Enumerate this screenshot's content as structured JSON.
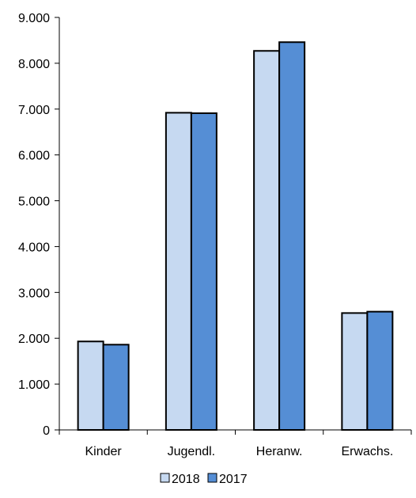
{
  "chart_data": {
    "type": "bar",
    "categories": [
      "Kinder",
      "Jugendl.",
      "Heranw.",
      "Erwachs."
    ],
    "series": [
      {
        "name": "2018",
        "color": "#c6d9f1",
        "values": [
          1930,
          6920,
          8270,
          2550
        ]
      },
      {
        "name": "2017",
        "color": "#558ed5",
        "values": [
          1860,
          6910,
          8460,
          2580
        ]
      }
    ],
    "ylim": [
      0,
      9000
    ],
    "yticks": [
      "0",
      "1.000",
      "2.000",
      "3.000",
      "4.000",
      "5.000",
      "6.000",
      "7.000",
      "8.000",
      "9.000"
    ],
    "ytick_values": [
      0,
      1000,
      2000,
      3000,
      4000,
      5000,
      6000,
      7000,
      8000,
      9000
    ],
    "grid": false,
    "legend_position": "bottom-center",
    "bar_border_color": "#000000"
  }
}
